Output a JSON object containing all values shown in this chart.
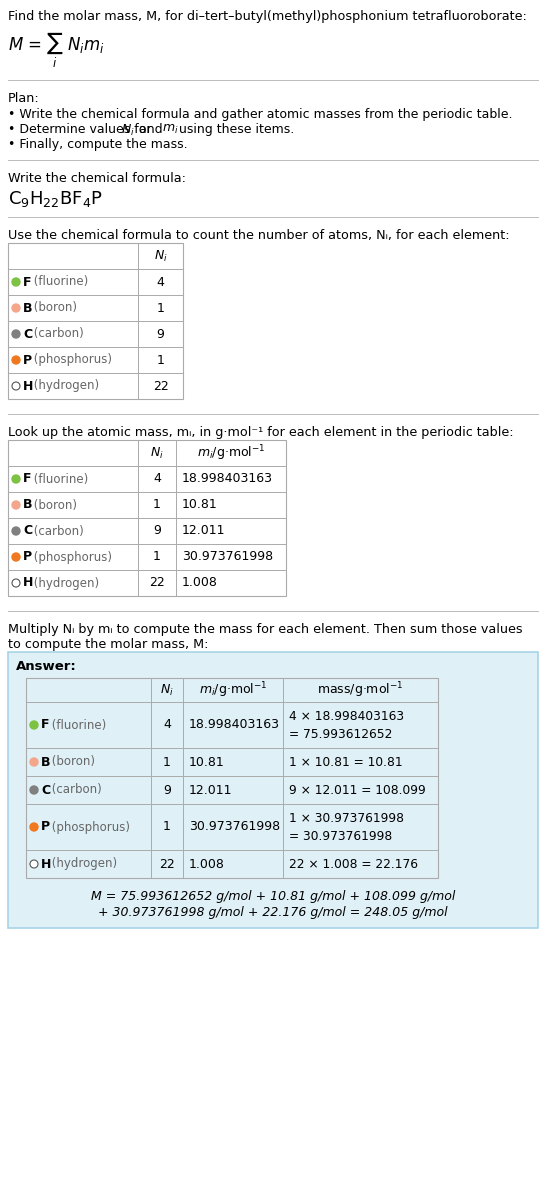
{
  "title_text": "Find the molar mass, M, for di–tert–butyl(methyl)phosphonium tetrafluoroborate:",
  "plan_header": "Plan:",
  "plan_items": [
    "• Write the chemical formula and gather atomic masses from the periodic table.",
    "• Determine values for Nᵢ and mᵢ using these items.",
    "• Finally, compute the mass."
  ],
  "formula_label": "Write the chemical formula:",
  "table1_header": "Use the chemical formula to count the number of atoms, Nᵢ, for each element:",
  "table2_header": "Look up the atomic mass, mᵢ, in g·mol⁻¹ for each element in the periodic table:",
  "table3_header_line1": "Multiply Nᵢ by mᵢ to compute the mass for each element. Then sum those values",
  "table3_header_line2": "to compute the molar mass, M:",
  "elements": [
    {
      "symbol": "F",
      "name": "fluorine",
      "N": "4",
      "m": "18.998403163",
      "mass_line1": "4 × 18.998403163",
      "mass_line2": "= 75.993612652",
      "dot_color": "#7dc242",
      "dot_filled": true
    },
    {
      "symbol": "B",
      "name": "boron",
      "N": "1",
      "m": "10.81",
      "mass_line1": "1 × 10.81 = 10.81",
      "mass_line2": "",
      "dot_color": "#f4a68a",
      "dot_filled": true
    },
    {
      "symbol": "C",
      "name": "carbon",
      "N": "9",
      "m": "12.011",
      "mass_line1": "9 × 12.011 = 108.099",
      "mass_line2": "",
      "dot_color": "#808080",
      "dot_filled": true
    },
    {
      "symbol": "P",
      "name": "phosphorus",
      "N": "1",
      "m": "30.973761998",
      "mass_line1": "1 × 30.973761998",
      "mass_line2": "= 30.973761998",
      "dot_color": "#f07820",
      "dot_filled": true
    },
    {
      "symbol": "H",
      "name": "hydrogen",
      "N": "22",
      "m": "1.008",
      "mass_line1": "22 × 1.008 = 22.176",
      "mass_line2": "",
      "dot_color": "#888888",
      "dot_filled": false
    }
  ],
  "answer_box_color": "#dff0f7",
  "answer_box_border": "#a8d4e6",
  "final_eq_line1": "M = 75.993612652 g/mol + 10.81 g/mol + 108.099 g/mol",
  "final_eq_line2": "+ 30.973761998 g/mol + 22.176 g/mol = 248.05 g/mol",
  "bg_color": "#ffffff",
  "separator_color": "#bbbbbb",
  "table_border_color": "#aaaaaa"
}
